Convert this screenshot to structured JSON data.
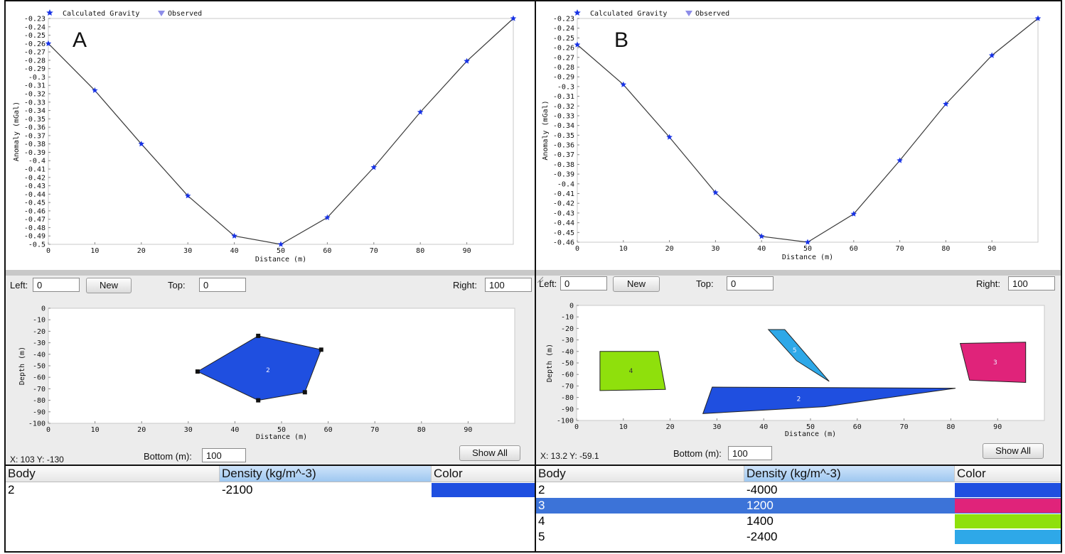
{
  "colors": {
    "body_2": "#1f4fe0",
    "body_3": "#e0237a",
    "body_4": "#8fe00c",
    "body_5": "#2ea8e8",
    "calc_marker": "#1833e6",
    "observed_marker": "#8d8de8",
    "selected_row": "#3c73d8"
  },
  "panelA": {
    "letter": "A",
    "chart_data": {
      "type": "line",
      "legend": [
        "Calculated Gravity",
        "Observed"
      ],
      "legend_placement": "top-left",
      "xlabel": "Distance (m)",
      "ylabel": "Anomaly (mGal)",
      "xlim": [
        0,
        100
      ],
      "ylim": [
        -0.5,
        -0.23
      ],
      "xticks": [
        "0",
        "10",
        "20",
        "30",
        "40",
        "50",
        "60",
        "70",
        "80",
        "90"
      ],
      "yticks": [
        "-0.23",
        "-0.24",
        "-0.25",
        "-0.26",
        "-0.27",
        "-0.28",
        "-0.29",
        "-0.3",
        "-0.31",
        "-0.32",
        "-0.33",
        "-0.34",
        "-0.35",
        "-0.36",
        "-0.37",
        "-0.38",
        "-0.39",
        "-0.4",
        "-0.41",
        "-0.42",
        "-0.43",
        "-0.44",
        "-0.45",
        "-0.46",
        "-0.47",
        "-0.48",
        "-0.49",
        "-0.5"
      ],
      "series": [
        {
          "name": "Calculated Gravity",
          "x": [
            0,
            10,
            20,
            30,
            40,
            50,
            60,
            70,
            80,
            90,
            100
          ],
          "y": [
            -0.26,
            -0.316,
            -0.38,
            -0.442,
            -0.49,
            -0.5,
            -0.468,
            -0.408,
            -0.342,
            -0.281,
            -0.23
          ]
        }
      ]
    },
    "model": {
      "chart_data": {
        "type": "scatter",
        "xlabel": "Distance (m)",
        "ylabel": "Depth (m)",
        "xlim": [
          0,
          100
        ],
        "ylim": [
          -100,
          0
        ],
        "xticks": [
          "0",
          "10",
          "20",
          "30",
          "40",
          "50",
          "60",
          "70",
          "80",
          "90"
        ],
        "yticks": [
          "0",
          "-10",
          "-20",
          "-30",
          "-40",
          "-50",
          "-60",
          "-70",
          "-80",
          "-90",
          "-100"
        ],
        "bodies": [
          {
            "id": "2",
            "color_key": "body_2",
            "vertices": [
              [
                45,
                -24
              ],
              [
                58.5,
                -36
              ],
              [
                55,
                -73
              ],
              [
                45,
                -80
              ],
              [
                32,
                -55
              ]
            ]
          }
        ]
      },
      "left_label": "Left:",
      "left_value": "0",
      "new_label": "New",
      "top_label": "Top:",
      "top_value": "0",
      "right_label": "Right:",
      "right_value": "100",
      "bottom_label": "Bottom (m):",
      "bottom_value": "100",
      "coord_readout": "X: 103 Y: -130",
      "show_all_label": "Show All"
    },
    "table": {
      "headers": [
        "Body",
        "Density (kg/m^-3)",
        "Color"
      ],
      "rows": [
        {
          "body": "2",
          "density": "-2100",
          "color_key": "body_2",
          "selected": false
        }
      ]
    }
  },
  "panelB": {
    "letter": "B",
    "chart_data": {
      "type": "line",
      "legend": [
        "Calculated Gravity",
        "Observed"
      ],
      "legend_placement": "top-left",
      "xlabel": "Distance (m)",
      "ylabel": "Anomaly (mGal)",
      "xlim": [
        0,
        100
      ],
      "ylim": [
        -0.46,
        -0.23
      ],
      "xticks": [
        "0",
        "10",
        "20",
        "30",
        "40",
        "50",
        "60",
        "70",
        "80",
        "90"
      ],
      "yticks": [
        "-0.23",
        "-0.24",
        "-0.25",
        "-0.26",
        "-0.27",
        "-0.28",
        "-0.29",
        "-0.3",
        "-0.31",
        "-0.32",
        "-0.33",
        "-0.34",
        "-0.35",
        "-0.36",
        "-0.37",
        "-0.38",
        "-0.39",
        "-0.4",
        "-0.41",
        "-0.42",
        "-0.43",
        "-0.44",
        "-0.45",
        "-0.46"
      ],
      "series": [
        {
          "name": "Calculated Gravity",
          "x": [
            0,
            10,
            20,
            30,
            40,
            50,
            60,
            70,
            80,
            90,
            100
          ],
          "y": [
            -0.257,
            -0.298,
            -0.352,
            -0.409,
            -0.454,
            -0.46,
            -0.431,
            -0.376,
            -0.318,
            -0.268,
            -0.23
          ]
        }
      ]
    },
    "model": {
      "chart_data": {
        "type": "scatter",
        "xlabel": "Distance (m)",
        "ylabel": "Depth (m)",
        "xlim": [
          0,
          100
        ],
        "ylim": [
          -100,
          0
        ],
        "xticks": [
          "0",
          "10",
          "20",
          "30",
          "40",
          "50",
          "60",
          "70",
          "80",
          "90"
        ],
        "yticks": [
          "0",
          "-10",
          "-20",
          "-30",
          "-40",
          "-50",
          "-60",
          "-70",
          "-80",
          "-90",
          "-100"
        ],
        "bodies": [
          {
            "id": "4",
            "color_key": "body_4",
            "vertices": [
              [
                5,
                -40
              ],
              [
                17.5,
                -40
              ],
              [
                19,
                -73
              ],
              [
                5,
                -74
              ]
            ]
          },
          {
            "id": "5",
            "color_key": "body_5",
            "vertices": [
              [
                41,
                -21
              ],
              [
                44.5,
                -21
              ],
              [
                54,
                -66
              ],
              [
                47,
                -48
              ]
            ]
          },
          {
            "id": "3",
            "color_key": "body_3",
            "vertices": [
              [
                82,
                -33
              ],
              [
                96,
                -32
              ],
              [
                96,
                -67
              ],
              [
                84,
                -65
              ]
            ]
          },
          {
            "id": "2",
            "color_key": "body_2",
            "vertices": [
              [
                29,
                -71
              ],
              [
                81,
                -72
              ],
              [
                53,
                -88
              ],
              [
                27,
                -94
              ]
            ]
          }
        ]
      },
      "left_label": "Left:",
      "left_value": "0",
      "new_label": "New",
      "top_label": "Top:",
      "top_value": "0",
      "right_label": "Right:",
      "right_value": "100",
      "bottom_label": "Bottom (m):",
      "bottom_value": "100",
      "coord_readout": "X: 13.2 Y: -59.1",
      "show_all_label": "Show All"
    },
    "table": {
      "headers": [
        "Body",
        "Density (kg/m^-3)",
        "Color"
      ],
      "rows": [
        {
          "body": "2",
          "density": "-4000",
          "color_key": "body_2",
          "selected": false
        },
        {
          "body": "3",
          "density": "1200",
          "color_key": "body_3",
          "selected": true
        },
        {
          "body": "4",
          "density": "1400",
          "color_key": "body_4",
          "selected": false
        },
        {
          "body": "5",
          "density": "-2400",
          "color_key": "body_5",
          "selected": false
        }
      ]
    }
  }
}
